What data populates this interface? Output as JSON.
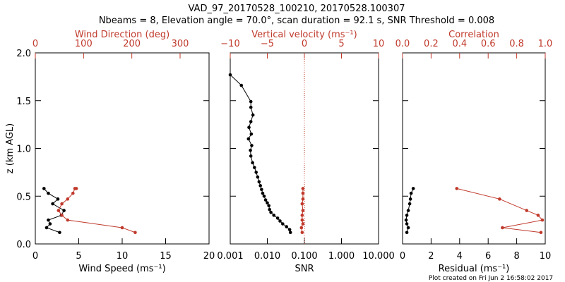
{
  "title_line1": "VAD_97_20170528_100210, 20170528.100307",
  "title_line2": "Nbeams = 8, Elevation angle = 70.0°, scan duration = 92.1 s, SNR Threshold = 0.008",
  "footer": "Plot created on Fri Jun  2 16:58:02 2017",
  "colors": {
    "primary": "#000000",
    "secondary": "#c0392b"
  },
  "chart_data": [
    {
      "type": "line",
      "ylabel": "z (km AGL)",
      "ylim": [
        0,
        2.0
      ],
      "yticks": [
        "0.0",
        "0.5",
        "1.0",
        "1.5",
        "2.0"
      ],
      "bottom_axis": {
        "label": "Wind Speed (ms⁻¹)",
        "range": [
          0,
          20
        ],
        "ticks": [
          "0",
          "5",
          "10",
          "15",
          "20"
        ]
      },
      "top_axis": {
        "label": "Wind Direction (deg)",
        "range": [
          0,
          360
        ],
        "ticks": [
          "0",
          "100",
          "200",
          "300"
        ]
      },
      "series": [
        {
          "axis": "bottom",
          "color": "#000000",
          "x": [
            2.8,
            1.3,
            1.7,
            1.5,
            3.0,
            3.3,
            2.0,
            2.6,
            1.5,
            1.0
          ],
          "y": [
            0.12,
            0.17,
            0.21,
            0.25,
            0.3,
            0.35,
            0.42,
            0.47,
            0.53,
            0.58
          ]
        },
        {
          "axis": "top",
          "color": "#c0392b",
          "x": [
            207,
            180,
            67,
            55,
            48,
            55,
            67,
            78,
            82,
            85
          ],
          "y": [
            0.12,
            0.17,
            0.25,
            0.3,
            0.35,
            0.42,
            0.47,
            0.53,
            0.58,
            0.58
          ]
        }
      ]
    },
    {
      "type": "line",
      "ylim": [
        0,
        2.0
      ],
      "bottom_axis": {
        "label": "SNR",
        "scale": "log",
        "range": [
          0.001,
          10
        ],
        "ticks": [
          "0.001",
          "0.010",
          "0.100",
          "1.000",
          "10.000"
        ]
      },
      "top_axis": {
        "label": "Vertical velocity (ms⁻¹)",
        "range": [
          -10,
          10
        ],
        "ticks": [
          "−10",
          "−5",
          "0",
          "5",
          "10"
        ]
      },
      "series": [
        {
          "axis": "bottom",
          "color": "#000000",
          "x": [
            0.042,
            0.04,
            0.033,
            0.026,
            0.022,
            0.019,
            0.015,
            0.0125,
            0.0115,
            0.011,
            0.01,
            0.009,
            0.0082,
            0.0075,
            0.007,
            0.0065,
            0.006,
            0.0055,
            0.005,
            0.0045,
            0.004,
            0.0036,
            0.0035,
            0.0038,
            0.0031,
            0.0037,
            0.0032,
            0.0036,
            0.0041,
            0.0036,
            0.0036,
            0.002,
            0.001
          ],
          "y": [
            0.12,
            0.15,
            0.18,
            0.21,
            0.24,
            0.27,
            0.3,
            0.33,
            0.36,
            0.4,
            0.43,
            0.46,
            0.5,
            0.53,
            0.57,
            0.61,
            0.65,
            0.7,
            0.75,
            0.8,
            0.85,
            0.92,
            0.98,
            1.03,
            1.1,
            1.15,
            1.22,
            1.28,
            1.35,
            1.43,
            1.49,
            1.66,
            1.77
          ]
        },
        {
          "axis": "top",
          "color": "#c0392b",
          "x": [
            -0.3,
            -0.4,
            -0.2,
            -0.3,
            -0.3,
            -0.2,
            -0.3,
            -0.2,
            -0.2,
            -0.2
          ],
          "y": [
            0.12,
            0.17,
            0.21,
            0.25,
            0.3,
            0.35,
            0.42,
            0.47,
            0.53,
            0.58
          ]
        }
      ],
      "reference_line": {
        "axis": "top",
        "value": 0,
        "style": "dotted",
        "color": "#c0392b"
      }
    },
    {
      "type": "line",
      "ylim": [
        0,
        2.0
      ],
      "bottom_axis": {
        "label": "Residual (ms⁻¹)",
        "range": [
          0,
          10
        ],
        "ticks": [
          "0",
          "2",
          "4",
          "6",
          "8",
          "10"
        ]
      },
      "top_axis": {
        "label": "Correlation",
        "range": [
          0,
          1.0
        ],
        "ticks": [
          "0.0",
          "0.2",
          "0.4",
          "0.6",
          "0.8",
          "1.0"
        ]
      },
      "series": [
        {
          "axis": "bottom",
          "color": "#000000",
          "x": [
            0.3,
            0.4,
            0.3,
            0.25,
            0.3,
            0.4,
            0.5,
            0.55,
            0.6,
            0.75
          ],
          "y": [
            0.12,
            0.17,
            0.21,
            0.25,
            0.3,
            0.35,
            0.42,
            0.47,
            0.53,
            0.58
          ]
        },
        {
          "axis": "top",
          "color": "#c0392b",
          "x": [
            0.97,
            0.7,
            0.98,
            0.95,
            0.87,
            0.68,
            0.38
          ],
          "y": [
            0.12,
            0.17,
            0.25,
            0.3,
            0.35,
            0.47,
            0.58
          ]
        }
      ]
    }
  ]
}
